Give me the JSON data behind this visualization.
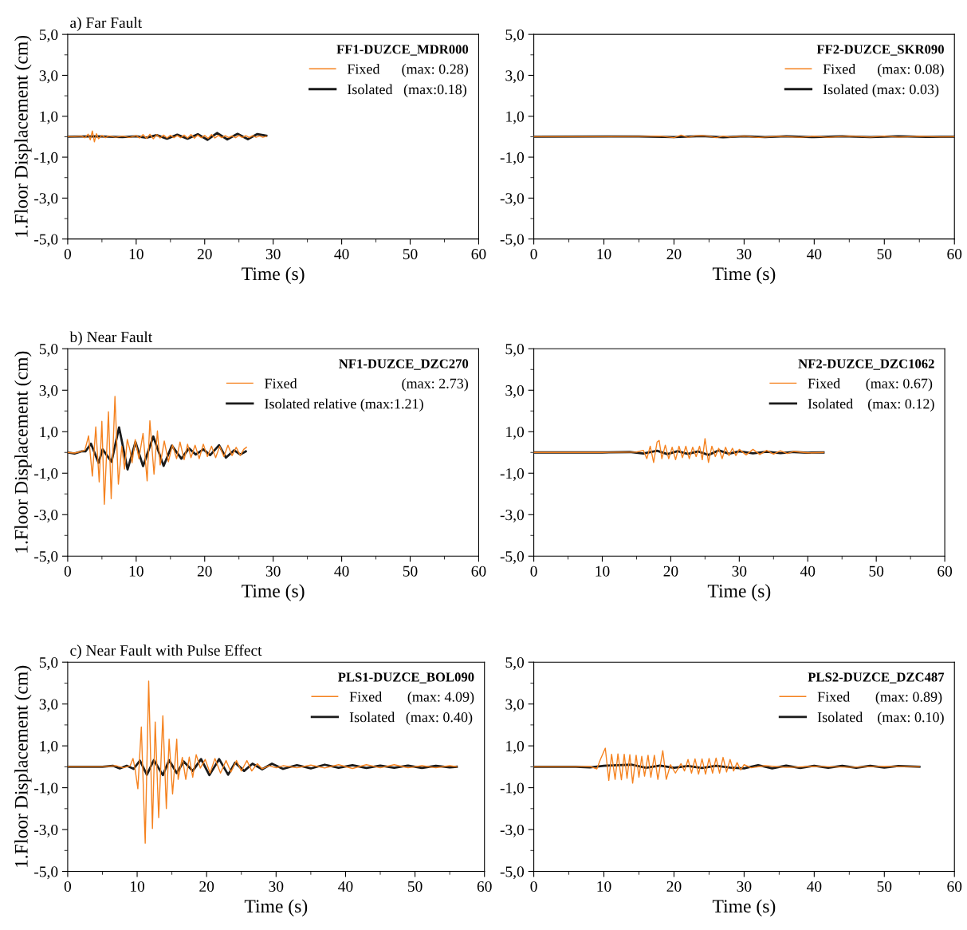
{
  "chart_data": [
    {
      "type": "line",
      "title": "a) Far Fault",
      "xlabel": "Time (s)",
      "ylabel": "1.Floor Displacement (cm)",
      "legend_title": "FF1-DUZCE_MDR000",
      "legend": "top right",
      "grid": false,
      "line_style": "solid",
      "xlim": [
        0,
        60
      ],
      "ylim": [
        -5,
        5
      ],
      "xticks": [
        0,
        {
          "value": 5,
          "label": null
        },
        10,
        {
          "value": 15,
          "label": null
        },
        20,
        {
          "value": 25,
          "label": null
        },
        30,
        {
          "value": 35,
          "label": null
        },
        40,
        {
          "value": 45,
          "label": null
        },
        50,
        {
          "value": 55,
          "label": null
        },
        60
      ],
      "yticks": [
        {
          "value": -5,
          "label": "-5,0"
        },
        {
          "value": -4,
          "label": null
        },
        {
          "value": -3,
          "label": "-3,0"
        },
        {
          "value": -2,
          "label": null
        },
        {
          "value": -1,
          "label": "-1,0"
        },
        {
          "value": 0,
          "label": null
        },
        {
          "value": 1,
          "label": "1,0"
        },
        {
          "value": 2,
          "label": null
        },
        {
          "value": 3,
          "label": "3,0"
        },
        {
          "value": 4,
          "label": null
        },
        {
          "value": 5,
          "label": "5,0"
        }
      ],
      "series": [
        {
          "name": "Fixed      (max: 0.28)",
          "color": "#f5821f",
          "x": [
            0,
            1,
            2,
            2.5,
            3,
            3.3,
            3.6,
            3.9,
            4.2,
            4.5,
            5,
            5.5,
            6,
            7,
            8,
            9,
            10,
            10.5,
            11,
            11.5,
            12,
            12.5,
            13,
            13.5,
            14,
            14.5,
            15,
            15.5,
            16,
            16.5,
            17,
            17.5,
            18,
            18.5,
            19,
            19.5,
            20,
            20.5,
            21,
            21.5,
            22,
            22.5,
            23,
            23.5,
            24,
            24.5,
            25,
            25.5,
            26,
            26.5,
            27,
            27.5,
            28,
            28.5,
            29
          ],
          "values": [
            0,
            0,
            0.03,
            -0.05,
            0.12,
            -0.15,
            0.28,
            -0.25,
            0.15,
            -0.1,
            0.06,
            -0.05,
            0.04,
            -0.03,
            0.03,
            -0.04,
            0.05,
            -0.06,
            0.1,
            -0.08,
            0.12,
            -0.1,
            0.1,
            -0.06,
            0.08,
            -0.06,
            0.07,
            -0.05,
            0.06,
            -0.05,
            0.08,
            -0.06,
            0.1,
            -0.07,
            0.08,
            -0.05,
            0.06,
            -0.08,
            0.1,
            -0.06,
            0.07,
            -0.05,
            0.05,
            -0.04,
            0.04,
            -0.05,
            0.06,
            -0.04,
            0.05,
            -0.04,
            0.05,
            -0.03,
            0.04,
            -0.03,
            0.02
          ]
        },
        {
          "name": "Isolated   (max:0.18)",
          "color": "#1a1a1a",
          "x": [
            0,
            4,
            8,
            10,
            11.5,
            13,
            14.5,
            16,
            17.5,
            19,
            20.4,
            21.8,
            23.3,
            24.8,
            26.3,
            27.7,
            29
          ],
          "values": [
            0,
            0.02,
            -0.02,
            0.02,
            -0.05,
            0.08,
            -0.1,
            0.1,
            -0.1,
            0.12,
            -0.15,
            0.18,
            -0.13,
            0.14,
            -0.12,
            0.13,
            0.05
          ]
        }
      ]
    },
    {
      "type": "line",
      "xlabel": "Time (s)",
      "legend_title": "FF2-DUZCE_SKR090",
      "legend": "top right",
      "grid": false,
      "line_style": "solid",
      "xlim": [
        0,
        60
      ],
      "ylim": [
        -5,
        5
      ],
      "xticks": [
        0,
        {
          "value": 5,
          "label": null
        },
        10,
        {
          "value": 15,
          "label": null
        },
        20,
        {
          "value": 25,
          "label": null
        },
        30,
        {
          "value": 35,
          "label": null
        },
        40,
        {
          "value": 45,
          "label": null
        },
        50,
        {
          "value": 55,
          "label": null
        },
        60
      ],
      "yticks": [
        {
          "value": -5,
          "label": "-5,0"
        },
        {
          "value": -4,
          "label": null
        },
        {
          "value": -3,
          "label": "-3,0"
        },
        {
          "value": -2,
          "label": null
        },
        {
          "value": -1,
          "label": "-1,0"
        },
        {
          "value": 0,
          "label": null
        },
        {
          "value": 1,
          "label": "1,0"
        },
        {
          "value": 2,
          "label": null
        },
        {
          "value": 3,
          "label": "3,0"
        },
        {
          "value": 4,
          "label": null
        },
        {
          "value": 5,
          "label": "5,0"
        }
      ],
      "series": [
        {
          "name": "Fixed      (max: 0.08)",
          "color": "#f5821f",
          "x": [
            0,
            10,
            15,
            18,
            20,
            21,
            22,
            23,
            24,
            25,
            26,
            27,
            28,
            30,
            32,
            35,
            38,
            40,
            42,
            45,
            48,
            50,
            52,
            55,
            58,
            60
          ],
          "values": [
            0,
            0,
            0.01,
            0.03,
            -0.05,
            0.08,
            -0.03,
            0.04,
            0.05,
            0.02,
            -0.05,
            0.03,
            -0.02,
            0.03,
            -0.04,
            0.02,
            -0.03,
            0.02,
            -0.03,
            0.03,
            -0.02,
            0.03,
            -0.02,
            0.02,
            -0.01,
            0
          ]
        },
        {
          "name": "Isolated (max: 0.03)",
          "color": "#1a1a1a",
          "x": [
            0,
            15,
            20,
            24,
            27,
            30,
            33,
            36,
            40,
            44,
            48,
            52,
            56,
            60
          ],
          "values": [
            0,
            0.01,
            -0.02,
            0.03,
            -0.03,
            0.02,
            -0.02,
            0.02,
            -0.02,
            0.02,
            -0.02,
            0.02,
            -0.01,
            0
          ]
        }
      ]
    },
    {
      "type": "line",
      "title": "b) Near Fault",
      "xlabel": "Time (s)",
      "ylabel": "1.Floor Displacement (cm)",
      "legend_title": "NF1-DUZCE_DZC270",
      "legend": "top right",
      "grid": false,
      "line_style": "solid",
      "xlim": [
        0,
        60
      ],
      "ylim": [
        -5,
        5
      ],
      "xticks": [
        0,
        {
          "value": 5,
          "label": null
        },
        10,
        {
          "value": 15,
          "label": null
        },
        20,
        {
          "value": 25,
          "label": null
        },
        30,
        {
          "value": 35,
          "label": null
        },
        40,
        {
          "value": 45,
          "label": null
        },
        50,
        {
          "value": 55,
          "label": null
        },
        60
      ],
      "yticks": [
        {
          "value": -5,
          "label": "-5,0"
        },
        {
          "value": -4,
          "label": null
        },
        {
          "value": -3,
          "label": "-3,0"
        },
        {
          "value": -2,
          "label": null
        },
        {
          "value": -1,
          "label": "-1,0"
        },
        {
          "value": 0,
          "label": null
        },
        {
          "value": 1,
          "label": "1,0"
        },
        {
          "value": 2,
          "label": null
        },
        {
          "value": 3,
          "label": "3,0"
        },
        {
          "value": 4,
          "label": null
        },
        {
          "value": 5,
          "label": "5,0"
        }
      ],
      "series": [
        {
          "name": "Fixed                             (max: 2.73)",
          "color": "#f5821f",
          "x": [
            0,
            1,
            2,
            2.5,
            3.05,
            3.6,
            4.1,
            4.6,
            4.99,
            5.35,
            5.95,
            6.35,
            6.9,
            7.4,
            7.9,
            8.3,
            8.7,
            9.1,
            9.4,
            9.86,
            10.4,
            11.0,
            11.6,
            12.0,
            12.6,
            13.1,
            13.5,
            14.1,
            14.7,
            15.3,
            15.9,
            16.4,
            17.0,
            17.5,
            18.0,
            18.6,
            19.2,
            19.8,
            20.4,
            21.0,
            21.6,
            22.2,
            22.8,
            23.4,
            24.0,
            24.6,
            25.2,
            25.7,
            26.1
          ],
          "values": [
            0,
            -0.03,
            0.05,
            0.1,
            0.8,
            -1.14,
            1.23,
            -1.42,
            1.5,
            -2.5,
            1.96,
            -2.23,
            2.7,
            -1.53,
            0.3,
            -0.8,
            0.63,
            0.1,
            -0.5,
            0.62,
            -0.3,
            0.92,
            -1.37,
            1.53,
            -1.05,
            1.04,
            -0.6,
            0.55,
            -0.45,
            0.36,
            -0.3,
            0.5,
            -0.35,
            0.4,
            -0.25,
            0.35,
            -0.3,
            0.4,
            -0.2,
            0.3,
            -0.25,
            0.3,
            -0.2,
            0.35,
            -0.15,
            0.25,
            -0.15,
            0.15,
            0.25
          ]
        },
        {
          "name": "Isolated relative (max:1.21)",
          "color": "#1a1a1a",
          "x": [
            0,
            1,
            2,
            2.6,
            3.4,
            4.5,
            5.1,
            6.4,
            7.5,
            8.74,
            9.9,
            11.0,
            12.5,
            14.0,
            15.2,
            16.6,
            17.7,
            18.7,
            19.8,
            20.8,
            22.1,
            23.1,
            24.3,
            25.2,
            26.0
          ],
          "values": [
            0,
            -0.05,
            0.05,
            0.05,
            0.42,
            -0.5,
            0.15,
            -0.45,
            1.21,
            -0.82,
            0.5,
            -0.66,
            0.77,
            -0.65,
            0.33,
            -0.3,
            0.2,
            -0.1,
            0.15,
            -0.13,
            0.35,
            -0.25,
            0.1,
            -0.1,
            0.05
          ]
        }
      ]
    },
    {
      "type": "line",
      "xlabel": "Time (s)",
      "legend_title": "NF2-DUZCE_DZC1062",
      "legend": "top right",
      "grid": false,
      "line_style": "solid",
      "xlim": [
        0,
        60
      ],
      "ylim": [
        -5,
        5
      ],
      "xticks": [
        0,
        {
          "value": 5,
          "label": null
        },
        10,
        {
          "value": 15,
          "label": null
        },
        20,
        {
          "value": 25,
          "label": null
        },
        30,
        {
          "value": 35,
          "label": null
        },
        40,
        {
          "value": 45,
          "label": null
        },
        50,
        {
          "value": 55,
          "label": null
        },
        60
      ],
      "yticks": [
        {
          "value": -5,
          "label": "-5,0"
        },
        {
          "value": -4,
          "label": null
        },
        {
          "value": -3,
          "label": "-3,0"
        },
        {
          "value": -2,
          "label": null
        },
        {
          "value": -1,
          "label": "-1,0"
        },
        {
          "value": 0,
          "label": null
        },
        {
          "value": 1,
          "label": "1,0"
        },
        {
          "value": 2,
          "label": null
        },
        {
          "value": 3,
          "label": "3,0"
        },
        {
          "value": 4,
          "label": null
        },
        {
          "value": 5,
          "label": "5,0"
        }
      ],
      "series": [
        {
          "name": "Fixed       (max: 0.67)",
          "color": "#f5821f",
          "x": [
            0,
            10,
            15,
            16,
            16.5,
            17,
            17.5,
            18,
            18.3,
            18.7,
            19.2,
            19.7,
            20.2,
            20.7,
            21.2,
            21.7,
            22.2,
            22.7,
            23.2,
            23.7,
            24.2,
            24.6,
            25.0,
            25.5,
            26.0,
            26.5,
            27,
            27.5,
            28,
            28.5,
            29,
            29.5,
            30,
            31,
            32,
            33,
            34,
            35,
            36,
            37,
            38,
            40,
            42.3
          ],
          "values": [
            0,
            0,
            0.02,
            0.1,
            -0.3,
            0.3,
            -0.48,
            0.5,
            0.58,
            -0.3,
            0.35,
            -0.3,
            0.25,
            -0.35,
            0.3,
            -0.25,
            0.3,
            -0.3,
            0.25,
            -0.2,
            0.3,
            -0.35,
            0.67,
            -0.48,
            0.3,
            -0.2,
            0.2,
            -0.3,
            0.25,
            -0.15,
            0.2,
            -0.15,
            0.15,
            -0.12,
            0.15,
            -0.1,
            0.1,
            -0.08,
            0.08,
            -0.05,
            0.05,
            -0.02,
            0
          ]
        },
        {
          "name": "Isolated    (max: 0.12)",
          "color": "#1a1a1a",
          "x": [
            0,
            10,
            14,
            16,
            18,
            19.5,
            21,
            22.5,
            24,
            25.5,
            27,
            28.5,
            30,
            32,
            34,
            36,
            38,
            40,
            42.3
          ],
          "values": [
            0,
            0,
            0.02,
            -0.05,
            0.08,
            -0.08,
            0.06,
            -0.07,
            0.05,
            -0.12,
            0.1,
            -0.06,
            0.05,
            -0.04,
            0.03,
            -0.03,
            0.02,
            -0.01,
            0
          ]
        }
      ]
    },
    {
      "type": "line",
      "title": "c) Near Fault with Pulse Effect",
      "xlabel": "Time (s)",
      "ylabel": "1.Floor Displacement (cm)",
      "legend_title": "PLS1-DUZCE_BOL090",
      "legend": "top right",
      "grid": false,
      "line_style": "solid",
      "xlim": [
        0,
        60
      ],
      "ylim": [
        -5,
        5
      ],
      "xticks": [
        0,
        {
          "value": 5,
          "label": null
        },
        10,
        {
          "value": 15,
          "label": null
        },
        20,
        {
          "value": 25,
          "label": null
        },
        30,
        {
          "value": 35,
          "label": null
        },
        40,
        {
          "value": 45,
          "label": null
        },
        50,
        {
          "value": 55,
          "label": null
        },
        60
      ],
      "yticks": [
        {
          "value": -5,
          "label": "-5,0"
        },
        {
          "value": -4,
          "label": null
        },
        {
          "value": -3,
          "label": "-3,0"
        },
        {
          "value": -2,
          "label": null
        },
        {
          "value": -1,
          "label": "-1,0"
        },
        {
          "value": 0,
          "label": null
        },
        {
          "value": 1,
          "label": "1,0"
        },
        {
          "value": 2,
          "label": null
        },
        {
          "value": 3,
          "label": "3,0"
        },
        {
          "value": 4,
          "label": null
        },
        {
          "value": 5,
          "label": "5,0"
        }
      ],
      "series": [
        {
          "name": "Fixed       (max: 4.09)",
          "color": "#f5821f",
          "x": [
            0,
            5,
            7,
            8,
            9,
            9.4,
            9.7,
            10.1,
            10.6,
            11.16,
            11.66,
            12.2,
            12.6,
            13.1,
            13.7,
            14.2,
            14.6,
            15.1,
            15.7,
            15.9,
            16.5,
            17,
            17.5,
            18,
            18.5,
            19.1,
            19.8,
            20.5,
            21.2,
            22,
            22.8,
            23.5,
            24.3,
            25,
            25.8,
            26.5,
            27.3,
            28,
            29,
            30,
            31,
            33,
            35,
            37,
            39,
            41,
            43,
            45,
            47,
            49,
            51,
            53,
            55,
            56
          ],
          "values": [
            0,
            0,
            0.05,
            -0.05,
            0.05,
            0.4,
            -0.1,
            -1.05,
            1.9,
            -3.65,
            4.09,
            -2.95,
            2.14,
            -2.43,
            2.44,
            -2.0,
            1.32,
            -1.3,
            1.32,
            -0.6,
            0.45,
            -0.6,
            0.46,
            -0.5,
            0.58,
            -0.06,
            0.35,
            -0.3,
            0.4,
            -0.3,
            0.3,
            -0.25,
            0.3,
            -0.2,
            0.3,
            -0.2,
            0.15,
            -0.1,
            0.05,
            -0.05,
            0.05,
            -0.05,
            0.08,
            -0.06,
            0.1,
            -0.08,
            0.1,
            -0.05,
            0.1,
            -0.05,
            0.05,
            -0.05,
            0.05,
            0
          ]
        },
        {
          "name": "Isolated   (max: 0.40)",
          "color": "#1a1a1a",
          "x": [
            0,
            5,
            6.5,
            7.5,
            8.5,
            9.5,
            10.4,
            11.4,
            12.4,
            13.7,
            14.6,
            15.7,
            16.7,
            18.0,
            19.2,
            20.4,
            21.8,
            23.1,
            24.1,
            25.4,
            26.6,
            28,
            29.4,
            31,
            33,
            35,
            37,
            39,
            41,
            43,
            45,
            47,
            49,
            51,
            53,
            55,
            56
          ],
          "values": [
            0,
            0,
            0.05,
            -0.08,
            0.05,
            -0.1,
            0.3,
            -0.38,
            0.32,
            -0.4,
            0.32,
            -0.3,
            0.25,
            -0.2,
            0.37,
            -0.4,
            0.37,
            -0.38,
            0.2,
            -0.2,
            0.15,
            -0.12,
            0.15,
            -0.1,
            0.08,
            -0.08,
            0.1,
            -0.05,
            0.08,
            -0.06,
            0.06,
            -0.05,
            0.06,
            -0.06,
            0.05,
            -0.03,
            0
          ]
        }
      ]
    },
    {
      "type": "line",
      "xlabel": "Time (s)",
      "legend_title": "PLS2-DUZCE_DZC487",
      "legend": "top right",
      "grid": false,
      "line_style": "solid",
      "xlim": [
        0,
        60
      ],
      "ylim": [
        -5,
        5
      ],
      "xticks": [
        0,
        {
          "value": 5,
          "label": null
        },
        10,
        {
          "value": 15,
          "label": null
        },
        20,
        {
          "value": 25,
          "label": null
        },
        30,
        {
          "value": 35,
          "label": null
        },
        40,
        {
          "value": 45,
          "label": null
        },
        50,
        {
          "value": 55,
          "label": null
        },
        60
      ],
      "yticks": [
        {
          "value": -5,
          "label": "-5,0"
        },
        {
          "value": -4,
          "label": null
        },
        {
          "value": -3,
          "label": "-3,0"
        },
        {
          "value": -2,
          "label": null
        },
        {
          "value": -1,
          "label": "-1,0"
        },
        {
          "value": 0,
          "label": null
        },
        {
          "value": 1,
          "label": "1,0"
        },
        {
          "value": 2,
          "label": null
        },
        {
          "value": 3,
          "label": "3,0"
        },
        {
          "value": 4,
          "label": null
        },
        {
          "value": 5,
          "label": "5,0"
        }
      ],
      "series": [
        {
          "name": "Fixed       (max: 0.89)",
          "color": "#f5821f",
          "x": [
            0,
            6,
            8,
            9,
            9.5,
            10.2,
            10.7,
            11.1,
            11.6,
            12.0,
            12.5,
            12.9,
            13.3,
            13.7,
            14.1,
            14.6,
            15.0,
            15.4,
            15.8,
            16.3,
            16.7,
            17.2,
            17.7,
            18.4,
            18.9,
            19.5,
            20.2,
            21,
            21.5,
            22,
            22.5,
            23,
            23.5,
            24,
            24.5,
            25,
            25.5,
            26,
            26.5,
            27,
            27.5,
            28,
            28.5,
            29,
            29.5,
            30,
            31,
            33,
            36,
            40,
            45,
            50,
            55
          ],
          "values": [
            0,
            0,
            0.02,
            -0.1,
            0.35,
            0.89,
            -0.65,
            0.6,
            -0.6,
            0.62,
            -0.62,
            0.6,
            -0.55,
            0.58,
            -0.78,
            0.55,
            -0.5,
            0.5,
            -0.45,
            0.55,
            -0.5,
            0.55,
            -0.6,
            0.77,
            -0.6,
            0.1,
            -0.3,
            0.15,
            -0.2,
            0.35,
            -0.3,
            0.38,
            -0.35,
            0.38,
            -0.35,
            0.4,
            -0.3,
            0.42,
            -0.3,
            0.45,
            -0.25,
            0.35,
            -0.2,
            0.2,
            -0.15,
            0.1,
            -0.05,
            0.05,
            -0.03,
            0.02,
            -0.02,
            0.02,
            0
          ]
        },
        {
          "name": "Isolated    (max: 0.10)",
          "color": "#1a1a1a",
          "x": [
            0,
            6,
            8,
            10,
            12,
            14,
            16,
            18,
            20,
            22,
            24,
            26,
            28,
            30,
            32,
            34,
            36,
            38,
            40,
            42,
            44,
            46,
            48,
            50,
            52,
            55
          ],
          "values": [
            0,
            0,
            -0.03,
            0.05,
            0.08,
            0.1,
            -0.05,
            0.06,
            -0.05,
            0.04,
            -0.06,
            0.05,
            -0.04,
            -0.08,
            0.08,
            -0.08,
            0.06,
            -0.06,
            0.05,
            -0.05,
            0.05,
            -0.05,
            0.05,
            -0.04,
            0.04,
            0
          ]
        }
      ]
    }
  ]
}
